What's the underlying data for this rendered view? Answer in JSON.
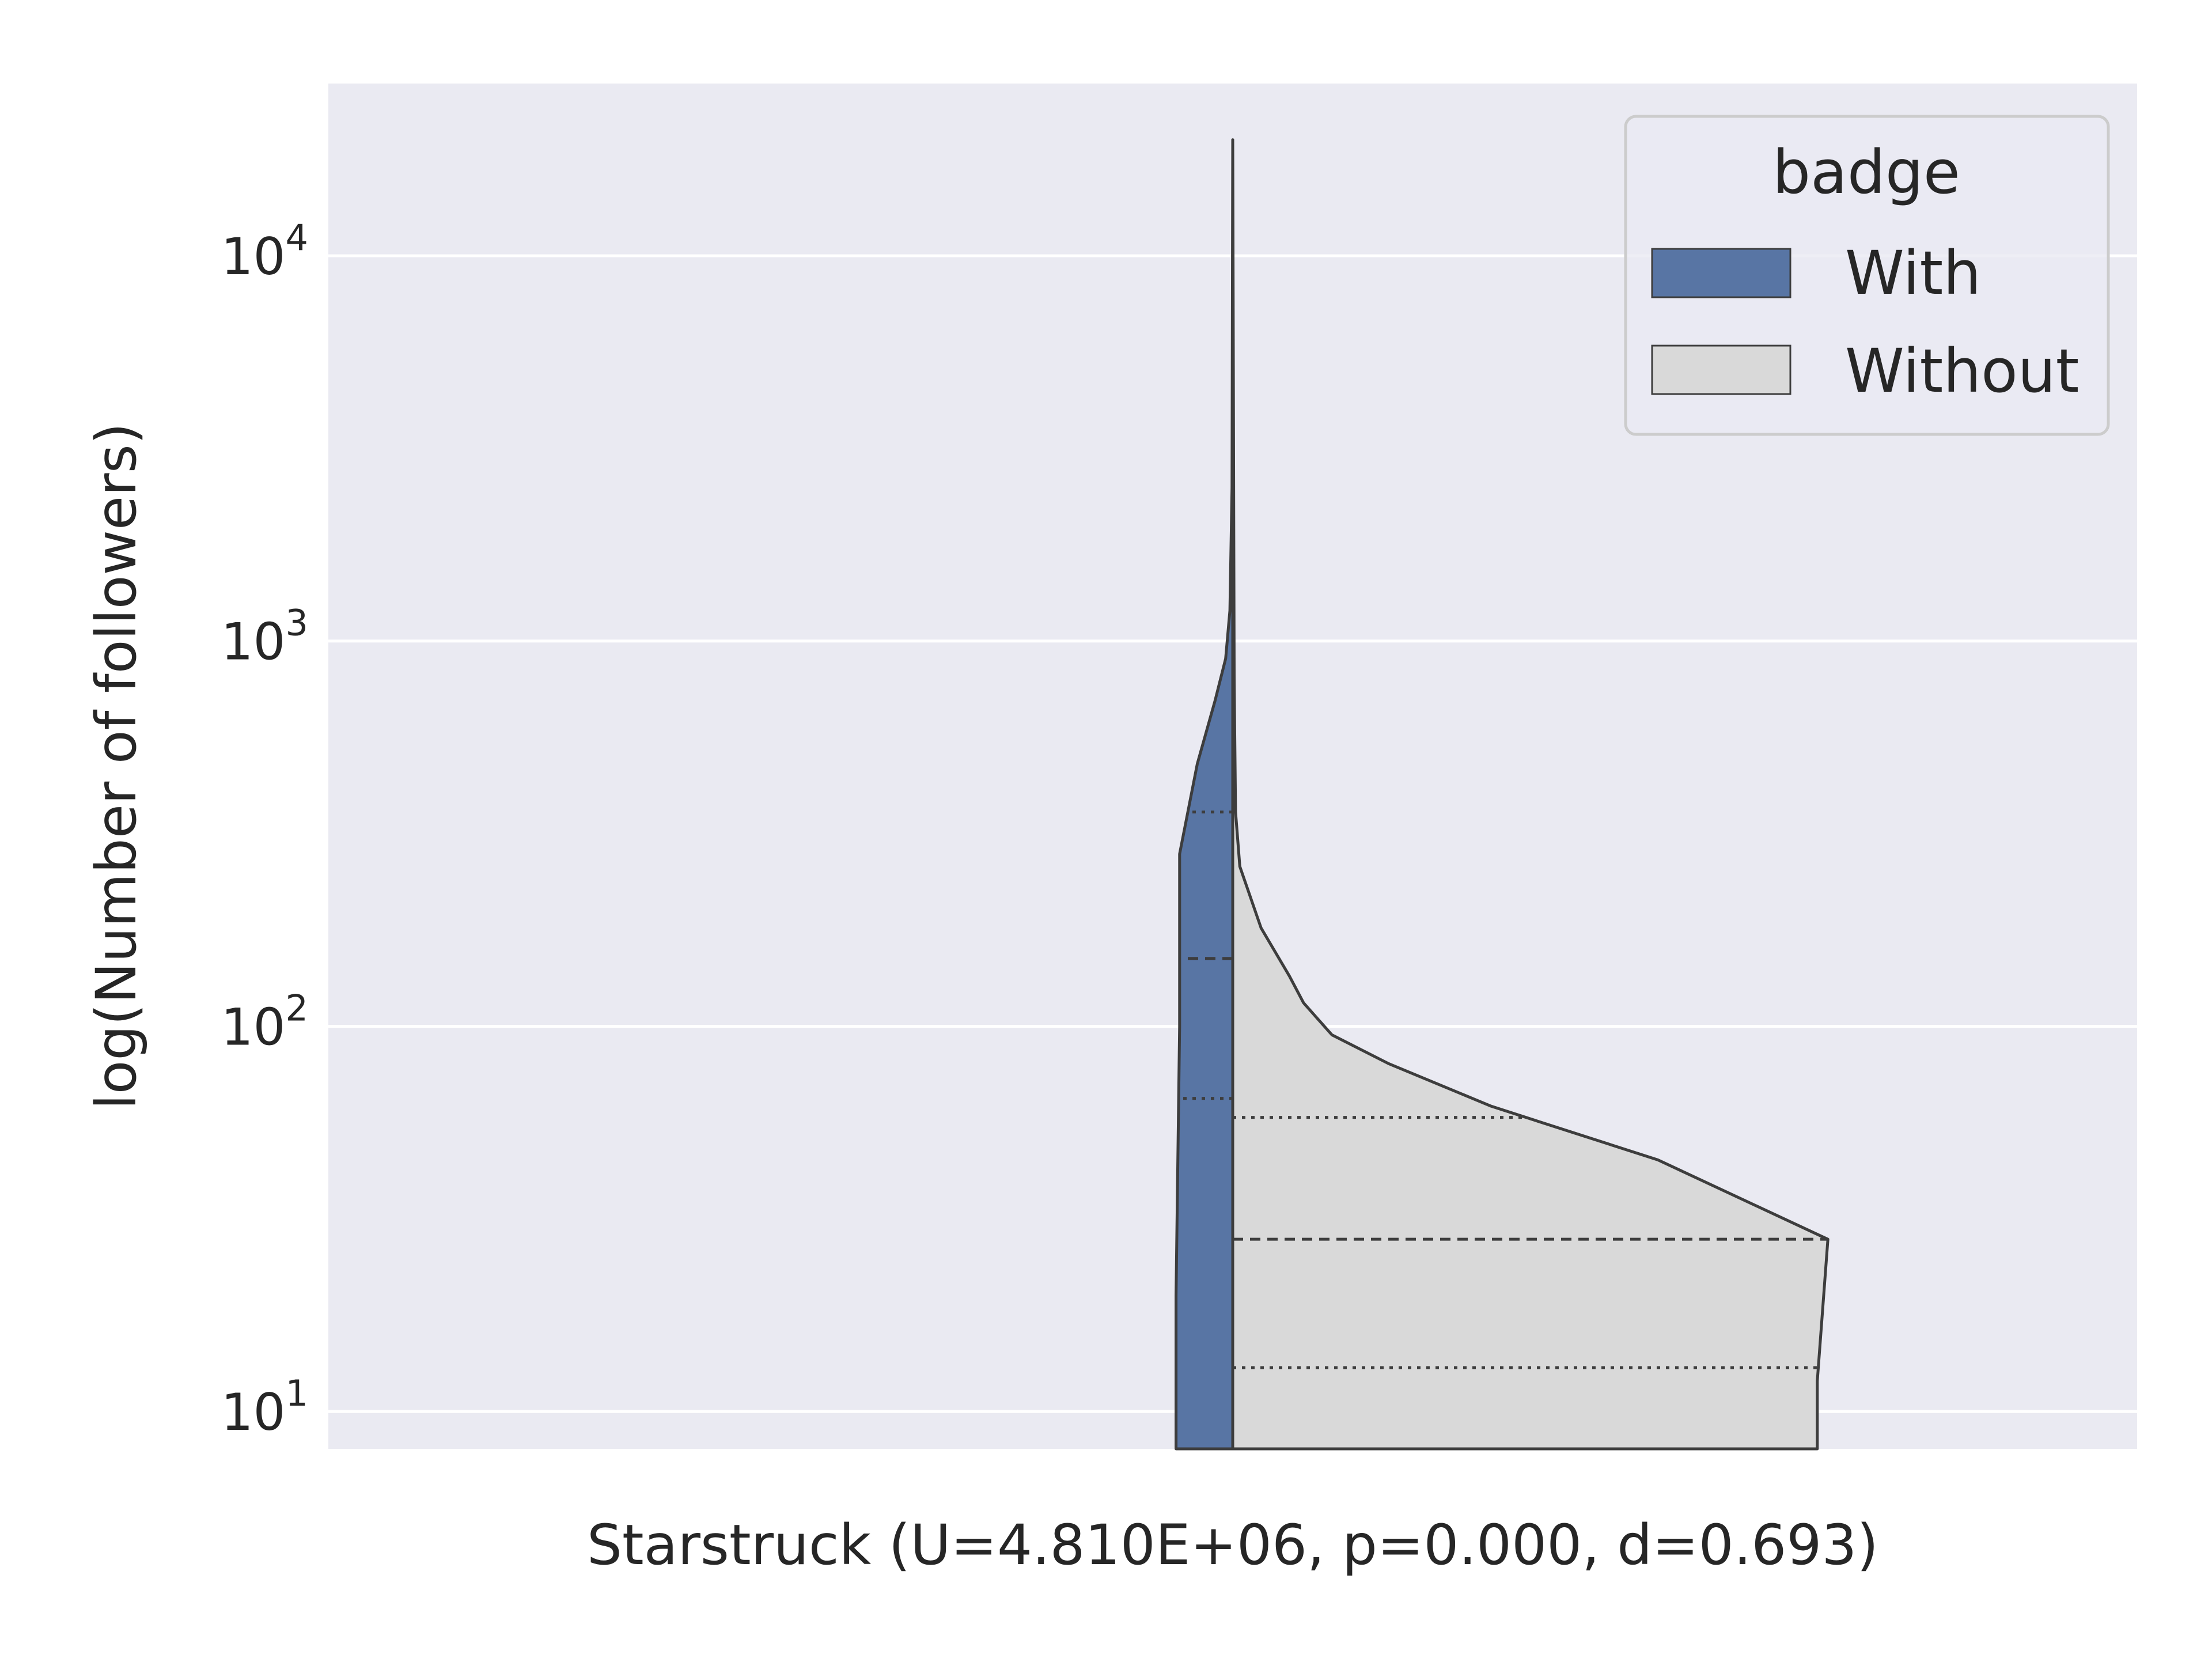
{
  "chart_data": {
    "type": "violin",
    "xlabel": "Starstruck (U=4.810E+06, p=0.000, d=0.693)",
    "ylabel": "log(Number of followers)",
    "yscale": "log",
    "ylim": [
      8,
      28000
    ],
    "grid": true,
    "y_ticks": [
      {
        "base": "10",
        "exp": "1",
        "value": 10
      },
      {
        "base": "10",
        "exp": "2",
        "value": 100
      },
      {
        "base": "10",
        "exp": "3",
        "value": 1000
      },
      {
        "base": "10",
        "exp": "4",
        "value": 10000
      }
    ],
    "legend": {
      "title": "badge",
      "position": "top-right",
      "entries": [
        {
          "label": "With",
          "color": "#5875a4"
        },
        {
          "label": "Without",
          "color": "#d9d9d9"
        }
      ]
    },
    "series": [
      {
        "name": "With",
        "side": "left",
        "color": "#5875a4",
        "quartiles": {
          "q1": 65,
          "median": 150,
          "q3": 360
        },
        "density_profile": [
          {
            "y": 8,
            "width": 0.16
          },
          {
            "y": 20,
            "width": 0.16
          },
          {
            "y": 100,
            "width": 0.15
          },
          {
            "y": 280,
            "width": 0.15
          },
          {
            "y": 480,
            "width": 0.1
          },
          {
            "y": 700,
            "width": 0.05
          },
          {
            "y": 900,
            "width": 0.02
          },
          {
            "y": 1200,
            "width": 0.008
          },
          {
            "y": 2500,
            "width": 0.002
          },
          {
            "y": 20000,
            "width": 0.0
          }
        ]
      },
      {
        "name": "Without",
        "side": "right",
        "color": "#d9d9d9",
        "quartiles": {
          "q1": 13,
          "median": 28,
          "q3": 58
        },
        "density_profile": [
          {
            "y": 8,
            "width": 1.65
          },
          {
            "y": 12,
            "width": 1.65
          },
          {
            "y": 28,
            "width": 1.68
          },
          {
            "y": 45,
            "width": 1.2
          },
          {
            "y": 62,
            "width": 0.73
          },
          {
            "y": 80,
            "width": 0.44
          },
          {
            "y": 95,
            "width": 0.28
          },
          {
            "y": 115,
            "width": 0.2
          },
          {
            "y": 135,
            "width": 0.16
          },
          {
            "y": 180,
            "width": 0.08
          },
          {
            "y": 260,
            "width": 0.02
          },
          {
            "y": 360,
            "width": 0.008
          },
          {
            "y": 800,
            "width": 0.004
          },
          {
            "y": 20000,
            "width": 0.0
          }
        ]
      }
    ]
  }
}
